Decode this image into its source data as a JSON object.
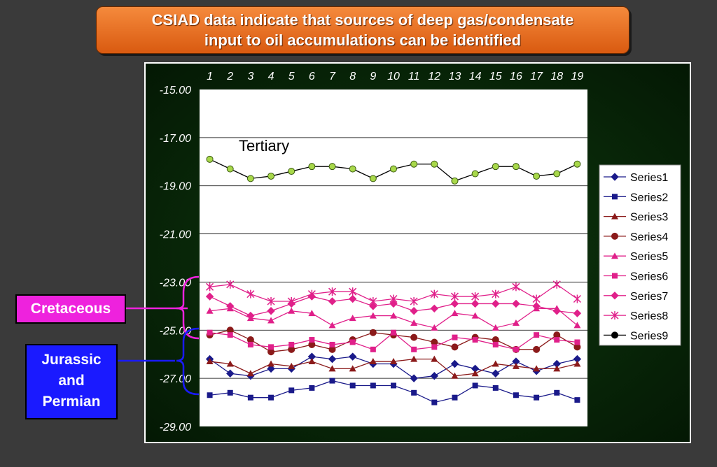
{
  "title": {
    "line1": "CSIAD data indicate that sources of deep gas/condensate",
    "line2": "input to oil accumulations can be identified"
  },
  "labels": {
    "cretaceous": "Cretaceous",
    "jurassic_lines": [
      "Jurassic",
      "and",
      "Permian"
    ]
  },
  "colors": {
    "background": "#3a3a3a",
    "title_box": "#e8701f",
    "cretaceous_box": "#ee22dd",
    "jurassic_box": "#1a1aff",
    "chart_frame": "#0b300b",
    "plot_area": "#ffffff"
  },
  "chart_data": {
    "type": "line",
    "title": "",
    "annotation": "Tertiary",
    "x": [
      1,
      2,
      3,
      4,
      5,
      6,
      7,
      8,
      9,
      10,
      11,
      12,
      13,
      14,
      15,
      16,
      17,
      18,
      19
    ],
    "ylim": [
      -29,
      -15
    ],
    "yticks": [
      "-15.00",
      "-17.00",
      "-19.00",
      "-21.00",
      "-23.00",
      "-25.00",
      "-27.00",
      "-29.00"
    ],
    "grid": true,
    "legend_position": "right",
    "series": [
      {
        "name": "Series1",
        "color": "#1a1a8a",
        "marker": "diamond",
        "values": [
          -26.2,
          -26.8,
          -26.9,
          -26.6,
          -26.6,
          -26.1,
          -26.2,
          -26.1,
          -26.4,
          -26.4,
          -27.0,
          -26.9,
          -26.4,
          -26.6,
          -26.8,
          -26.3,
          -26.7,
          -26.4,
          -26.2
        ]
      },
      {
        "name": "Series2",
        "color": "#1a1a8a",
        "marker": "square",
        "values": [
          -27.7,
          -27.6,
          -27.8,
          -27.8,
          -27.5,
          -27.4,
          -27.1,
          -27.3,
          -27.3,
          -27.3,
          -27.6,
          -28.0,
          -27.8,
          -27.3,
          -27.4,
          -27.7,
          -27.8,
          -27.6,
          -27.9
        ]
      },
      {
        "name": "Series3",
        "color": "#8b1a1a",
        "marker": "triangle",
        "values": [
          -26.3,
          -26.4,
          -26.8,
          -26.4,
          -26.5,
          -26.3,
          -26.6,
          -26.6,
          -26.3,
          -26.3,
          -26.2,
          -26.2,
          -26.9,
          -26.8,
          -26.4,
          -26.5,
          -26.6,
          -26.6,
          -26.4
        ]
      },
      {
        "name": "Series4",
        "color": "#8b1a1a",
        "marker": "circle",
        "values": [
          -25.2,
          -25.0,
          -25.4,
          -25.9,
          -25.8,
          -25.6,
          -25.8,
          -25.4,
          -25.1,
          -25.2,
          -25.3,
          -25.5,
          -25.7,
          -25.3,
          -25.4,
          -25.8,
          -25.8,
          -25.2,
          -25.7
        ]
      },
      {
        "name": "Series5",
        "color": "#e0208a",
        "marker": "triangle",
        "values": [
          -24.2,
          -24.1,
          -24.5,
          -24.6,
          -24.2,
          -24.3,
          -24.8,
          -24.5,
          -24.4,
          -24.4,
          -24.7,
          -24.9,
          -24.3,
          -24.4,
          -24.9,
          -24.7,
          -24.1,
          -24.1,
          -24.8
        ]
      },
      {
        "name": "Series6",
        "color": "#e0208a",
        "marker": "square",
        "values": [
          -25.1,
          -25.2,
          -25.6,
          -25.7,
          -25.6,
          -25.4,
          -25.6,
          -25.5,
          -25.8,
          -25.1,
          -25.8,
          -25.7,
          -25.3,
          -25.4,
          -25.6,
          -25.8,
          -25.2,
          -25.4,
          -25.5
        ]
      },
      {
        "name": "Series7",
        "color": "#e0208a",
        "marker": "diamond",
        "values": [
          -23.6,
          -24.0,
          -24.4,
          -24.2,
          -23.9,
          -23.6,
          -23.8,
          -23.7,
          -24.0,
          -23.9,
          -24.2,
          -24.1,
          -23.9,
          -23.9,
          -23.9,
          -23.9,
          -24.0,
          -24.2,
          -24.3
        ]
      },
      {
        "name": "Series8",
        "color": "#e0208a",
        "marker": "star",
        "values": [
          -23.2,
          -23.1,
          -23.5,
          -23.8,
          -23.8,
          -23.5,
          -23.4,
          -23.4,
          -23.8,
          -23.7,
          -23.8,
          -23.5,
          -23.6,
          -23.6,
          -23.5,
          -23.2,
          -23.7,
          -23.1,
          -23.7
        ]
      },
      {
        "name": "Series9",
        "color": "#000000",
        "marker": "circle",
        "fill": "#a8d84a",
        "values": [
          -17.9,
          -18.3,
          -18.7,
          -18.6,
          -18.4,
          -18.2,
          -18.2,
          -18.3,
          -18.7,
          -18.3,
          -18.1,
          -18.1,
          -18.8,
          -18.5,
          -18.2,
          -18.2,
          -18.6,
          -18.5,
          -18.1
        ]
      }
    ]
  }
}
